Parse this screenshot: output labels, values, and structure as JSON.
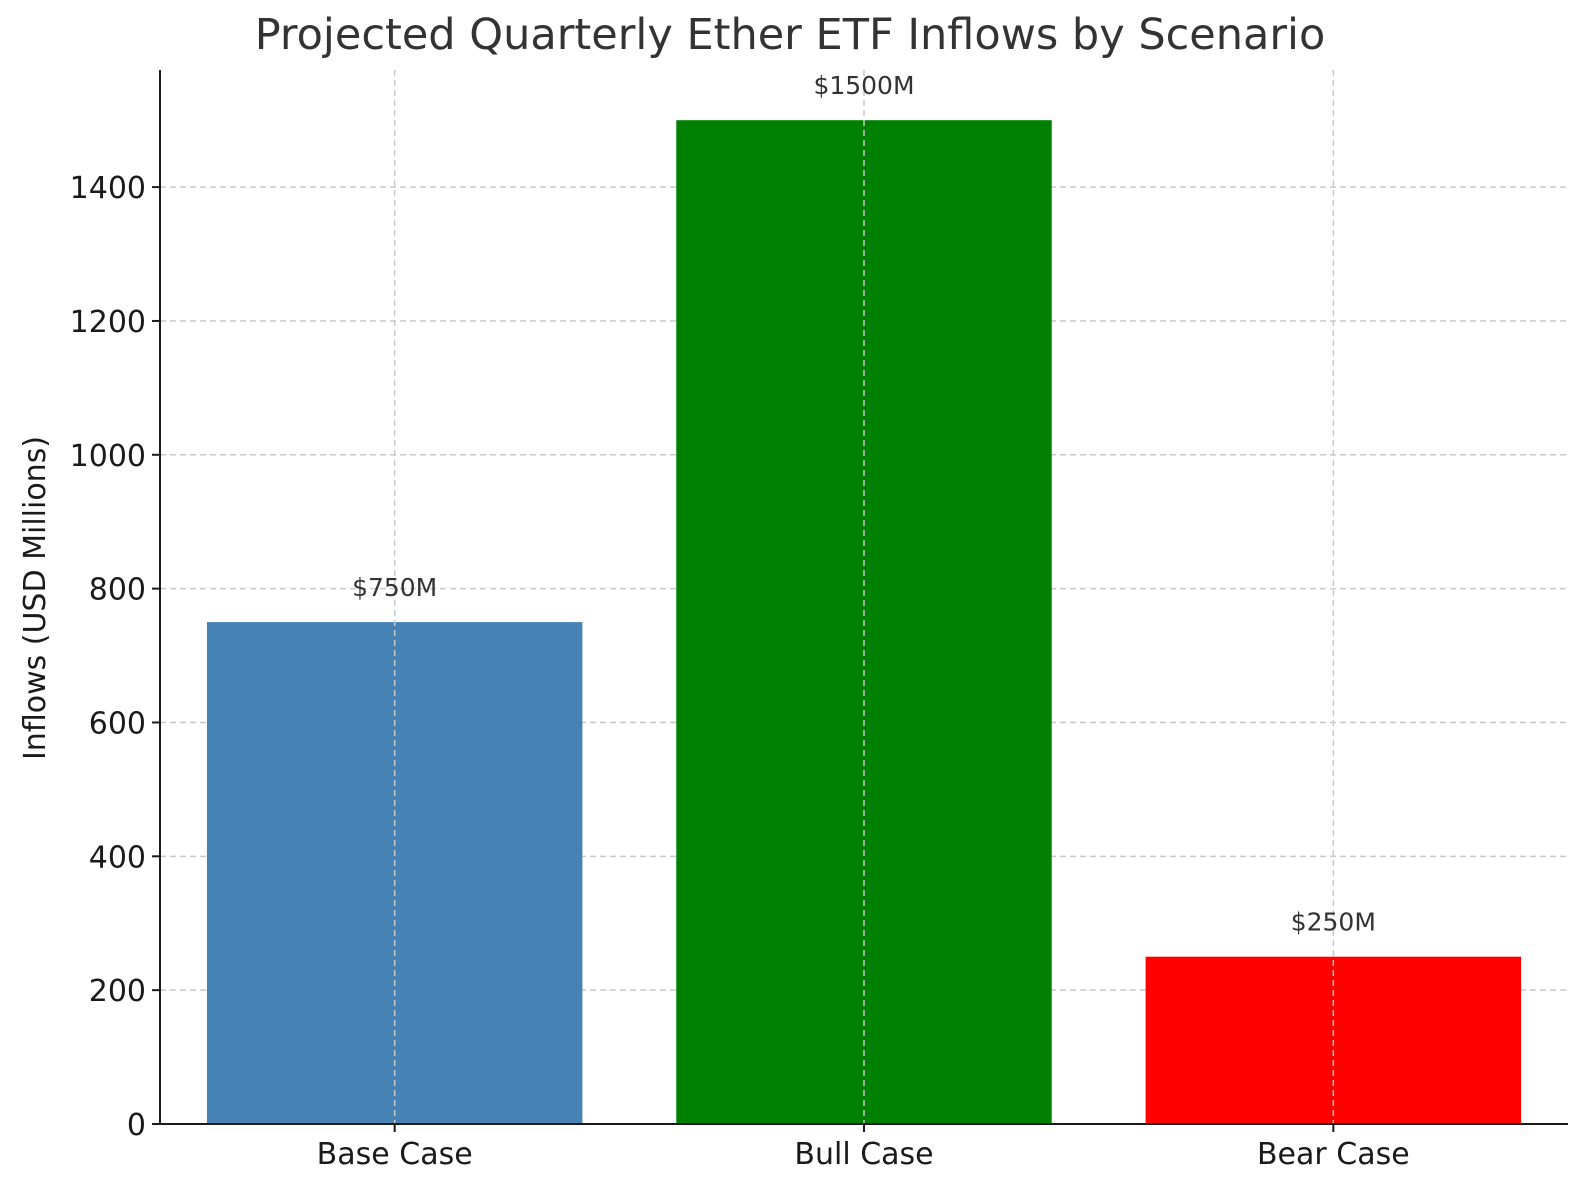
{
  "chart_data": {
    "type": "bar",
    "title": "Projected Quarterly Ether ETF Inflows by Scenario",
    "xlabel": "",
    "ylabel": "Inflows (USD Millions)",
    "categories": [
      "Base Case",
      "Bull Case",
      "Bear Case"
    ],
    "values": [
      750,
      1500,
      250
    ],
    "data_labels": [
      "$750M",
      "$1500M",
      "$250M"
    ],
    "bar_colors": [
      "#4682b4",
      "#008000",
      "#ff0000"
    ],
    "ylim": [
      0,
      1575
    ],
    "yticks": [
      0,
      200,
      400,
      600,
      800,
      1000,
      1200,
      1400
    ],
    "grid": true,
    "legend": "none"
  }
}
